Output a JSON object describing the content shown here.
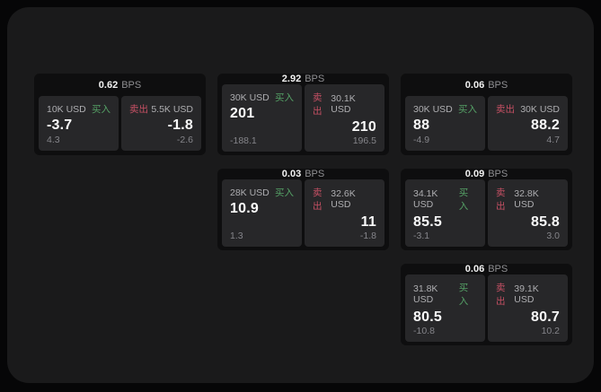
{
  "labels": {
    "buy": "买入",
    "sell": "卖出",
    "unit": "BPS"
  },
  "colors": {
    "buy_green": "#55a166",
    "sell_red": "#c65064",
    "panel_bg": "#1a1a1b",
    "card_bg": "#0e0e0f",
    "tile_bg": "#272729"
  },
  "cards": [
    {
      "bps": "0.62",
      "buy_amount": "10K USD",
      "buy_value": "-3.7",
      "buy_sub": "4.3",
      "sell_amount": "5.5K USD",
      "sell_value": "-1.8",
      "sell_sub": "-2.6"
    },
    {
      "bps": "2.92",
      "buy_amount": "30K USD",
      "buy_value": "201",
      "buy_sub": "-188.1",
      "sell_amount": "30.1K USD",
      "sell_value": "210",
      "sell_sub": "196.5"
    },
    {
      "bps": "0.06",
      "buy_amount": "30K USD",
      "buy_value": "88",
      "buy_sub": "-4.9",
      "sell_amount": "30K USD",
      "sell_value": "88.2",
      "sell_sub": "4.7"
    },
    {
      "bps": "0.03",
      "buy_amount": "28K USD",
      "buy_value": "10.9",
      "buy_sub": "1.3",
      "sell_amount": "32.6K USD",
      "sell_value": "11",
      "sell_sub": "-1.8"
    },
    {
      "bps": "0.09",
      "buy_amount": "34.1K USD",
      "buy_value": "85.5",
      "buy_sub": "-3.1",
      "sell_amount": "32.8K USD",
      "sell_value": "85.8",
      "sell_sub": "3.0"
    },
    {
      "bps": "0.06",
      "buy_amount": "31.8K USD",
      "buy_value": "80.5",
      "buy_sub": "-10.8",
      "sell_amount": "39.1K USD",
      "sell_value": "80.7",
      "sell_sub": "10.2"
    }
  ]
}
